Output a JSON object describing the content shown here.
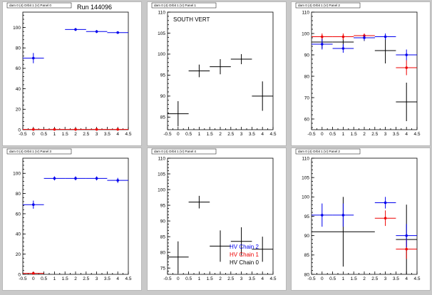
{
  "figure": {
    "run_label": "Run 144096",
    "legend": [
      {
        "label": "HV Chain 2",
        "color": "#0000ee"
      },
      {
        "label": "HV Chain 1",
        "color": "#ee0000"
      },
      {
        "label": "HV Chain 0",
        "color": "#000000"
      }
    ]
  },
  "chart_data": [
    {
      "type": "scatter",
      "title": "dam 0 (4) Orbit 1 (V) Panel 0",
      "annotation": "",
      "xlim": [
        -0.5,
        4.5
      ],
      "ylim": [
        0,
        115
      ],
      "xticks": [
        "-0.5",
        "0",
        "0.5",
        "1",
        "1.5",
        "2",
        "2.5",
        "3",
        "3.5",
        "4",
        "4.5"
      ],
      "yticks": [
        0,
        20,
        40,
        60,
        80,
        100
      ],
      "series": [
        {
          "color": "#0000ee",
          "points": [
            {
              "x": 0,
              "y": 70,
              "xerr": 0.5,
              "yerr": 5
            },
            {
              "x": 2,
              "y": 98,
              "xerr": 0.5,
              "yerr": 1.5
            },
            {
              "x": 3,
              "y": 96,
              "xerr": 0.5,
              "yerr": 1.5
            },
            {
              "x": 4,
              "y": 95,
              "xerr": 0.5,
              "yerr": 1.2
            }
          ]
        },
        {
          "color": "#ee0000",
          "points": [
            {
              "x": 0,
              "y": 0.3,
              "xerr": 0.5,
              "yerr": 0
            },
            {
              "x": 1,
              "y": 0.3,
              "xerr": 0.5,
              "yerr": 0
            },
            {
              "x": 2,
              "y": 0.3,
              "xerr": 0.5,
              "yerr": 0
            },
            {
              "x": 3,
              "y": 0.3,
              "xerr": 0.5,
              "yerr": 0
            },
            {
              "x": 4,
              "y": 0.3,
              "xerr": 0.5,
              "yerr": 0
            }
          ]
        }
      ]
    },
    {
      "type": "scatter",
      "title": "dam 0 (4) Orbit 1 (V) Panel 1",
      "annotation": "SOUTH VERT",
      "xlim": [
        -0.5,
        4.5
      ],
      "ylim": [
        82,
        110
      ],
      "xticks": [
        "-0.5",
        "0",
        "0.5",
        "1",
        "1.5",
        "2",
        "2.5",
        "3",
        "3.5",
        "4",
        "4.5"
      ],
      "yticks": [
        85,
        90,
        95,
        100,
        105,
        110
      ],
      "series": [
        {
          "color": "#000000",
          "points": [
            {
              "x": 0,
              "y": 85.8,
              "xerr": 0.5,
              "yerr": 3
            },
            {
              "x": 1,
              "y": 96,
              "xerr": 0.5,
              "yerr": 1.5
            },
            {
              "x": 2,
              "y": 97,
              "xerr": 0.5,
              "yerr": 1.8
            },
            {
              "x": 3,
              "y": 98.8,
              "xerr": 0.5,
              "yerr": 1.2
            },
            {
              "x": 4,
              "y": 90,
              "xerr": 0.5,
              "yerr": 3.5
            }
          ]
        }
      ]
    },
    {
      "type": "scatter",
      "title": "dam 0 (4) Orbit 1 (V) Panel 2",
      "annotation": "",
      "xlim": [
        -0.5,
        4.5
      ],
      "ylim": [
        55,
        110
      ],
      "xticks": [
        "-0.5",
        "0",
        "0.5",
        "1",
        "1.5",
        "2",
        "2.5",
        "3",
        "3.5",
        "4",
        "4.5"
      ],
      "yticks": [
        60,
        70,
        80,
        90,
        100,
        110
      ],
      "series": [
        {
          "color": "#000000",
          "points": [
            {
              "x": 0,
              "y": 96,
              "xerr": 0.5,
              "yerr": 3
            },
            {
              "x": 1,
              "y": 96,
              "xerr": 0.5,
              "yerr": 3
            },
            {
              "x": 2,
              "y": 98,
              "xerr": 0.5,
              "yerr": 1.5
            },
            {
              "x": 3,
              "y": 92,
              "xerr": 0.5,
              "yerr": 6
            },
            {
              "x": 4,
              "y": 68,
              "xerr": 0.5,
              "yerr": 9
            }
          ]
        },
        {
          "color": "#ee0000",
          "points": [
            {
              "x": 0,
              "y": 98.5,
              "xerr": 0.5,
              "yerr": 1.5
            },
            {
              "x": 1,
              "y": 98.5,
              "xerr": 0.5,
              "yerr": 1.5
            },
            {
              "x": 2,
              "y": 99,
              "xerr": 0.5,
              "yerr": 1
            },
            {
              "x": 4,
              "y": 84,
              "xerr": 0.5,
              "yerr": 3.5
            }
          ]
        },
        {
          "color": "#0000ee",
          "points": [
            {
              "x": 0,
              "y": 95,
              "xerr": 0.5,
              "yerr": 2.5
            },
            {
              "x": 1,
              "y": 93,
              "xerr": 0.5,
              "yerr": 2
            },
            {
              "x": 2,
              "y": 98,
              "xerr": 0.5,
              "yerr": 1.2
            },
            {
              "x": 3,
              "y": 98.5,
              "xerr": 0.5,
              "yerr": 1.5
            },
            {
              "x": 4,
              "y": 90,
              "xerr": 0.5,
              "yerr": 2.5
            }
          ]
        }
      ]
    },
    {
      "type": "scatter",
      "title": "dam 0 (4) Orbit 1 (V) Panel 3",
      "annotation": "",
      "xlim": [
        -0.5,
        4.5
      ],
      "ylim": [
        0,
        115
      ],
      "xticks": [
        "-0.5",
        "0",
        "0.5",
        "1",
        "1.5",
        "2",
        "2.5",
        "3",
        "3.5",
        "4",
        "4.5"
      ],
      "yticks": [
        0,
        20,
        40,
        60,
        80,
        100
      ],
      "series": [
        {
          "color": "#0000ee",
          "points": [
            {
              "x": 0,
              "y": 69,
              "xerr": 0.5,
              "yerr": 4
            },
            {
              "x": 1,
              "y": 95,
              "xerr": 0.5,
              "yerr": 2
            },
            {
              "x": 2,
              "y": 95,
              "xerr": 0.5,
              "yerr": 2
            },
            {
              "x": 3,
              "y": 95,
              "xerr": 0.5,
              "yerr": 2
            },
            {
              "x": 4,
              "y": 93,
              "xerr": 0.5,
              "yerr": 2.5
            }
          ]
        },
        {
          "color": "#ee0000",
          "points": [
            {
              "x": 0,
              "y": 1,
              "xerr": 0.5,
              "yerr": 1
            }
          ]
        }
      ]
    },
    {
      "type": "scatter",
      "title": "dam 0 (4) Orbit 1 (V) Panel 4",
      "annotation": "",
      "xlim": [
        -0.5,
        4.5
      ],
      "ylim": [
        73,
        110
      ],
      "xticks": [
        "-0.5",
        "0",
        "0.5",
        "1",
        "1.5",
        "2",
        "2.5",
        "3",
        "3.5",
        "4",
        "4.5"
      ],
      "yticks": [
        75,
        80,
        85,
        90,
        95,
        100,
        105,
        110
      ],
      "series": [
        {
          "color": "#000000",
          "points": [
            {
              "x": 0,
              "y": 78.5,
              "xerr": 0.5,
              "yerr": 5
            },
            {
              "x": 1,
              "y": 96,
              "xerr": 0.5,
              "yerr": 2
            },
            {
              "x": 2,
              "y": 82,
              "xerr": 0.5,
              "yerr": 5
            },
            {
              "x": 3,
              "y": 83.5,
              "xerr": 0.5,
              "yerr": 4.5
            },
            {
              "x": 4,
              "y": 81,
              "xerr": 0.5,
              "yerr": 4
            }
          ]
        }
      ]
    },
    {
      "type": "scatter",
      "title": "dam 0 (4) Orbit 1 (V) Panel 2",
      "annotation": "",
      "xlim": [
        -0.5,
        4.5
      ],
      "ylim": [
        80,
        110
      ],
      "xticks": [
        "-0.5",
        "0",
        "0.5",
        "1",
        "1.5",
        "2",
        "2.5",
        "3",
        "3.5",
        "4",
        "4.5"
      ],
      "yticks": [
        80,
        85,
        90,
        95,
        100,
        105,
        110
      ],
      "series": [
        {
          "color": "#000000",
          "points": [
            {
              "x": 1,
              "y": 91,
              "xerr": 1.5,
              "yerr": 9
            },
            {
              "x": 4,
              "y": 89,
              "xerr": 0.5,
              "yerr": 9
            }
          ]
        },
        {
          "color": "#ee0000",
          "points": [
            {
              "x": 3,
              "y": 94.5,
              "xerr": 0.5,
              "yerr": 2
            },
            {
              "x": 4,
              "y": 86.5,
              "xerr": 0.5,
              "yerr": 2.5
            }
          ]
        },
        {
          "color": "#0000ee",
          "points": [
            {
              "x": 0,
              "y": 95.3,
              "xerr": 0.5,
              "yerr": 3
            },
            {
              "x": 1,
              "y": 95.3,
              "xerr": 0.5,
              "yerr": 3
            },
            {
              "x": 3,
              "y": 98.5,
              "xerr": 0.5,
              "yerr": 1.5
            },
            {
              "x": 4,
              "y": 90,
              "xerr": 0.5,
              "yerr": 3
            }
          ]
        }
      ]
    }
  ]
}
